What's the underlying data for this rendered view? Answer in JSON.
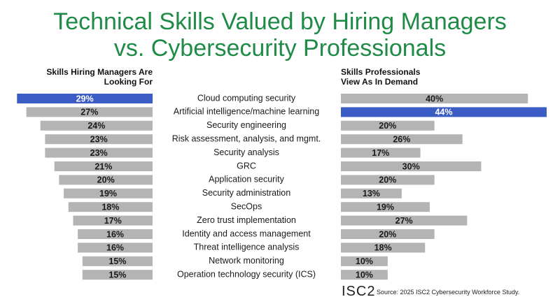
{
  "chart_data": {
    "type": "butterfly",
    "title": "Technical Skills Valued by Hiring Managers vs. Cybersecurity Professionals",
    "categories": [
      "Cloud computing security",
      "Artificial intelligence/machine learning",
      "Security engineering",
      "Risk assessment, analysis, and mgmt.",
      "Security analysis",
      "GRC",
      "Application security",
      "Security administration",
      "SecOps",
      "Zero trust implementation",
      "Identity and access management",
      "Threat intelligence analysis",
      "Network monitoring",
      "Operation technology security (ICS)"
    ],
    "series": [
      {
        "name": "Skills Hiring Managers Are Looking For",
        "color": "#b4b4b4",
        "highlight_color": "#3b5cc4",
        "highlight_index": 0,
        "values": [
          29,
          27,
          24,
          23,
          23,
          21,
          20,
          19,
          18,
          17,
          16,
          16,
          15,
          15
        ],
        "value_labels": [
          "29%",
          "27%",
          "24%",
          "23%",
          "23%",
          "21%",
          "20%",
          "19%",
          "18%",
          "17%",
          "16%",
          "16%",
          "15%",
          "15%"
        ]
      },
      {
        "name": "Skills Professionals View As In Demand",
        "color": "#b4b4b4",
        "highlight_color": "#3b5cc4",
        "highlight_index": 1,
        "values": [
          40,
          44,
          20,
          26,
          17,
          30,
          20,
          13,
          19,
          27,
          20,
          18,
          10,
          10
        ],
        "value_labels": [
          "40%",
          "44%",
          "20%",
          "26%",
          "17%",
          "30%",
          "20%",
          "13%",
          "19%",
          "27%",
          "20%",
          "18%",
          "10%",
          "10%"
        ]
      }
    ],
    "logo": "ISC2",
    "source": "Source: 2025 ISC2 Cybersecurity Workforce Study."
  }
}
